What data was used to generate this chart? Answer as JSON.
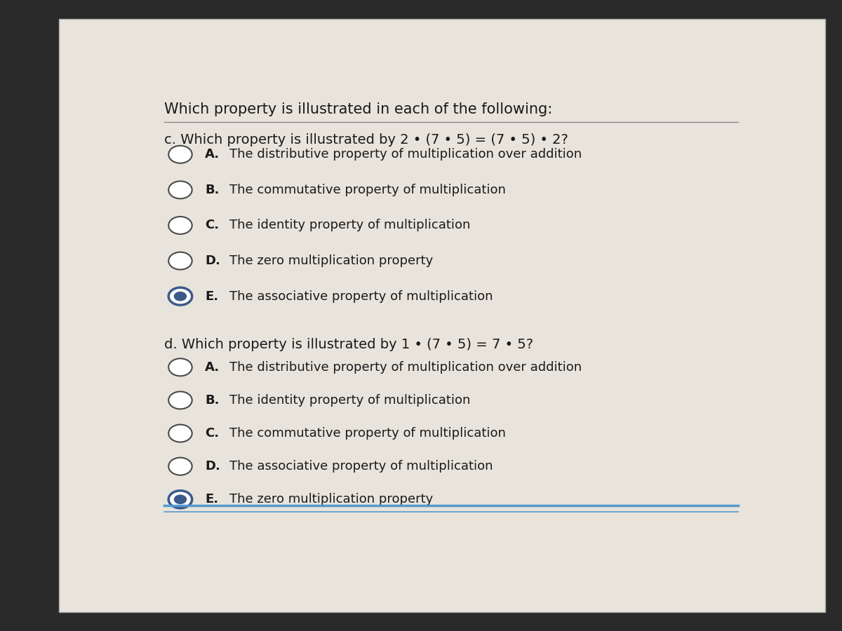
{
  "bg_color": "#2a2a2a",
  "panel_color": "#e8e4dc",
  "title": "Which property is illustrated in each of the following:",
  "question_c": "c. Which property is illustrated by 2 • (7 • 5) = (7 • 5) • 2?",
  "options_c": [
    {
      "label": "A.",
      "text": "The distributive property of multiplication over addition",
      "selected": false
    },
    {
      "label": "B.",
      "text": "The commutative property of multiplication",
      "selected": false
    },
    {
      "label": "C.",
      "text": "The identity property of multiplication",
      "selected": false
    },
    {
      "label": "D.",
      "text": "The zero multiplication property",
      "selected": false
    },
    {
      "label": "E.",
      "text": "The associative property of multiplication",
      "selected": true
    }
  ],
  "question_d": "d. Which property is illustrated by 1 • (7 • 5) = 7 • 5?",
  "options_d": [
    {
      "label": "A.",
      "text": "The distributive property of multiplication over addition",
      "selected": false
    },
    {
      "label": "B.",
      "text": "The identity property of multiplication",
      "selected": false
    },
    {
      "label": "C.",
      "text": "The commutative property of multiplication",
      "selected": false
    },
    {
      "label": "D.",
      "text": "The associative property of multiplication",
      "selected": false
    },
    {
      "label": "E.",
      "text": "The zero multiplication property",
      "selected": true
    }
  ],
  "text_color": "#1a1a1a",
  "circle_color": "#4a4a4a",
  "selected_fill": "#3a5a8a",
  "font_size_title": 15,
  "font_size_question": 14,
  "font_size_option": 13
}
